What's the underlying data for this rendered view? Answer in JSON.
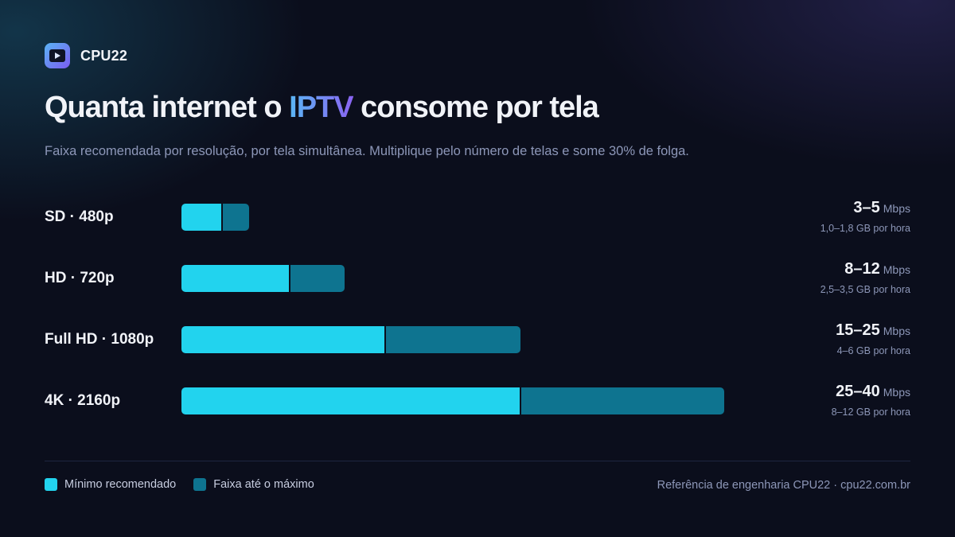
{
  "brand": {
    "name": "CPU22"
  },
  "title": {
    "prefix": "Quanta internet o ",
    "highlight": "IPTV",
    "suffix": " consome por tela"
  },
  "subtitle": "Faixa recomendada por resolução, por tela simultânea. Multiplique pelo número de telas e some 30% de folga.",
  "chart_data": {
    "type": "bar",
    "orientation": "horizontal",
    "stacked": true,
    "unit": "Mbps",
    "xlim": [
      0,
      40
    ],
    "categories": [
      "SD · 480p",
      "HD · 720p",
      "Full HD · 1080p",
      "4K · 2160p"
    ],
    "series": [
      {
        "name": "Mínimo recomendado",
        "values": [
          3,
          8,
          15,
          25
        ],
        "color": "#22d3ee"
      },
      {
        "name": "Faixa até o máximo",
        "values": [
          2,
          4,
          10,
          15
        ],
        "color": "#0e7490"
      }
    ],
    "range_labels": [
      "3–5",
      "8–12",
      "15–25",
      "25–40"
    ],
    "per_hour_labels": [
      "1,0–1,8 GB por hora",
      "2,5–3,5 GB por hora",
      "4–6 GB por hora",
      "8–12 GB por hora"
    ],
    "legend": "bottom-left",
    "grid": false
  },
  "legend": {
    "min_label": "Mínimo recomendado",
    "max_label": "Faixa até o máximo"
  },
  "footer": {
    "reference": "Referência de engenharia CPU22 · cpu22.com.br"
  }
}
